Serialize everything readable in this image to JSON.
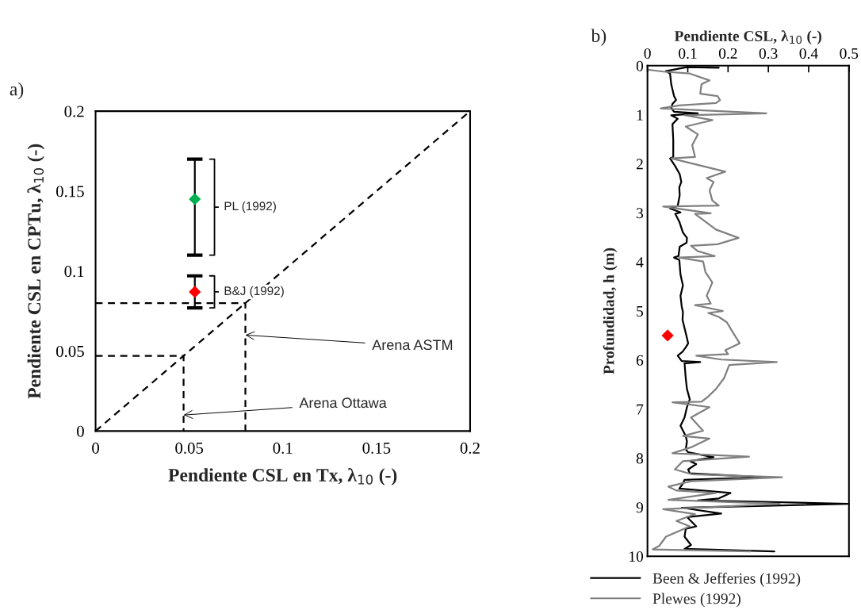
{
  "chart_data": [
    {
      "type": "scatter",
      "title": "a)",
      "xlabel": "Pendiente CSL en Tx, λ$_{10}$ (-)",
      "ylabel": "Pendiente CSL en CPTu, λ$_{10}$ (-)",
      "xlim": [
        0,
        0.2
      ],
      "ylim": [
        0,
        0.2
      ],
      "xticks": [
        0,
        0.05,
        0.1,
        0.15,
        0.2
      ],
      "yticks": [
        0,
        0.05,
        0.1,
        0.15,
        0.2
      ],
      "grid": false,
      "legend": false,
      "marker": "diamond",
      "series": [
        {
          "type": "scatter",
          "color": "#00b050",
          "x": [
            0.053
          ],
          "values": [
            0.145
          ],
          "errors": [
            [
              0.11,
              0.17
            ]
          ]
        },
        {
          "type": "scatter",
          "color": "#ff0000",
          "x": [
            0.053
          ],
          "values": [
            0.087
          ],
          "errors": [
            [
              0.077,
              0.097
            ]
          ]
        },
        {
          "type": "line",
          "color": "#000000",
          "line_style": "dashed",
          "marker": "none",
          "x": [
            0,
            0.2
          ],
          "values": [
            0,
            0.2
          ]
        },
        {
          "type": "line",
          "color": "#000000",
          "line_style": "dashed",
          "marker": "none",
          "x": [
            0,
            0.047,
            0.047
          ],
          "values": [
            0.047,
            0.047,
            0
          ]
        },
        {
          "type": "line",
          "color": "#000000",
          "line_style": "dashed",
          "marker": "none",
          "x": [
            0,
            0.08,
            0.08
          ],
          "values": [
            0.08,
            0.08,
            0
          ]
        }
      ],
      "annotations": [
        {
          "text": "PL (1992)",
          "x": 0.053,
          "y": 0.145
        },
        {
          "text": "B&J (1992)",
          "x": 0.053,
          "y": 0.087
        },
        {
          "text": "Arena ASTM",
          "x": 0.08,
          "y": 0.06
        },
        {
          "text": "Arena Ottawa",
          "x": 0.047,
          "y": 0.01
        }
      ]
    },
    {
      "type": "line",
      "title": "b)",
      "xlabel": "Pendiente CSL, λ$_{10}$ (-)",
      "ylabel": "Profundidad, h (m)",
      "xlim": [
        0,
        0.5
      ],
      "ylim": [
        10,
        0
      ],
      "xticks": [
        0,
        0.1,
        0.2,
        0.3,
        0.4,
        0.5
      ],
      "yticks": [
        0,
        1,
        2,
        3,
        4,
        5,
        6,
        7,
        8,
        9,
        10
      ],
      "grid": false,
      "legend": "bottom",
      "marker": "none",
      "line_style": "solid",
      "series": [
        {
          "type": "line",
          "name": "Been & Jefferies (1992)",
          "color": "#000000",
          "x": [
            0.177,
            0.098,
            0.046,
            0.056,
            0.059,
            0.066,
            0.071,
            0.062,
            0.059,
            0.066,
            0.125,
            0.059,
            0.075,
            0.062,
            0.064,
            0.064,
            0.056,
            0.069,
            0.08,
            0.084,
            0.079,
            0.08,
            0.075,
            0.056,
            0.082,
            0.069,
            0.079,
            0.088,
            0.098,
            0.097,
            0.08,
            0.077,
            0.066,
            0.079,
            0.082,
            0.088,
            0.082,
            0.085,
            0.088,
            0.087,
            0.095,
            0.101,
            0.095,
            0.087,
            0.075,
            0.085,
            0.131,
            0.092,
            0.095,
            0.098,
            0.105,
            0.098,
            0.092,
            0.082,
            0.095,
            0.098,
            0.095,
            0.101,
            0.164,
            0.105,
            0.121,
            0.101,
            0.105,
            0.288,
            0.092,
            0.088,
            0.079,
            0.206,
            0.177,
            0.125,
            0.498,
            0.085,
            0.183,
            0.098,
            0.121,
            0.095,
            0.092,
            0.108,
            0.092,
            0.315
          ],
          "values": [
            0.04,
            0.03,
            0.11,
            0.16,
            0.38,
            0.62,
            0.7,
            0.78,
            0.86,
            0.94,
            0.97,
            1.01,
            1.08,
            1.19,
            1.51,
            1.86,
            1.89,
            2.05,
            2.21,
            2.37,
            2.48,
            2.64,
            2.86,
            2.91,
            2.99,
            3.02,
            3.18,
            3.4,
            3.51,
            3.61,
            3.69,
            3.88,
            3.91,
            3.96,
            4.26,
            4.48,
            4.69,
            4.91,
            5.02,
            5.18,
            5.45,
            5.66,
            5.74,
            5.83,
            5.91,
            6.02,
            6.04,
            6.07,
            6.37,
            6.59,
            6.8,
            6.96,
            7.17,
            7.34,
            7.55,
            7.66,
            7.82,
            7.88,
            7.98,
            8.06,
            8.12,
            8.23,
            8.31,
            8.39,
            8.44,
            8.52,
            8.62,
            8.71,
            8.82,
            8.86,
            8.93,
            9.01,
            9.13,
            9.2,
            9.39,
            9.44,
            9.6,
            9.77,
            9.85,
            9.9
          ]
        },
        {
          "type": "line",
          "name": "Plewes (1992)",
          "color": "#808080",
          "x": [
            0.0,
            0.039,
            0.105,
            0.154,
            0.134,
            0.131,
            0.174,
            0.18,
            0.17,
            0.079,
            0.033,
            0.295,
            0.092,
            0.161,
            0.095,
            0.125,
            0.111,
            0.118,
            0.059,
            0.193,
            0.147,
            0.164,
            0.154,
            0.161,
            0.177,
            0.039,
            0.157,
            0.118,
            0.17,
            0.226,
            0.174,
            0.108,
            0.125,
            0.167,
            0.079,
            0.138,
            0.144,
            0.161,
            0.147,
            0.157,
            0.118,
            0.187,
            0.151,
            0.177,
            0.197,
            0.213,
            0.229,
            0.193,
            0.2,
            0.121,
            0.183,
            0.321,
            0.203,
            0.19,
            0.17,
            0.15,
            0.134,
            0.062,
            0.154,
            0.108,
            0.138,
            0.088,
            0.154,
            0.111,
            0.062,
            0.252,
            0.088,
            0.068,
            0.111,
            0.334,
            0.108,
            0.052,
            0.072,
            0.17,
            0.052,
            0.328,
            0.039,
            0.118,
            0.072,
            0.105,
            0.046,
            0.029,
            0.013,
            0.256
          ],
          "values": [
            0.08,
            0.12,
            0.16,
            0.3,
            0.38,
            0.57,
            0.62,
            0.7,
            0.76,
            0.81,
            0.87,
            0.97,
            1.01,
            1.11,
            1.24,
            1.4,
            1.62,
            1.86,
            1.89,
            2.16,
            2.29,
            2.37,
            2.54,
            2.75,
            2.85,
            2.87,
            3.01,
            3.02,
            3.34,
            3.51,
            3.64,
            3.67,
            3.78,
            3.88,
            3.91,
            3.99,
            4.21,
            4.42,
            4.69,
            4.85,
            4.88,
            5.0,
            5.04,
            5.12,
            5.23,
            5.45,
            5.66,
            5.8,
            5.88,
            5.91,
            5.99,
            6.04,
            6.1,
            6.37,
            6.59,
            6.75,
            6.85,
            6.86,
            6.96,
            7.17,
            7.44,
            7.55,
            7.6,
            7.77,
            7.9,
            7.97,
            8.06,
            8.23,
            8.33,
            8.39,
            8.47,
            8.58,
            8.66,
            8.71,
            8.85,
            8.93,
            9.04,
            9.14,
            9.28,
            9.39,
            9.6,
            9.79,
            9.86,
            9.9
          ]
        },
        {
          "type": "scatter",
          "color": "#ff0000",
          "marker": "diamond",
          "x": [
            0.05
          ],
          "values": [
            5.5
          ]
        }
      ]
    }
  ]
}
